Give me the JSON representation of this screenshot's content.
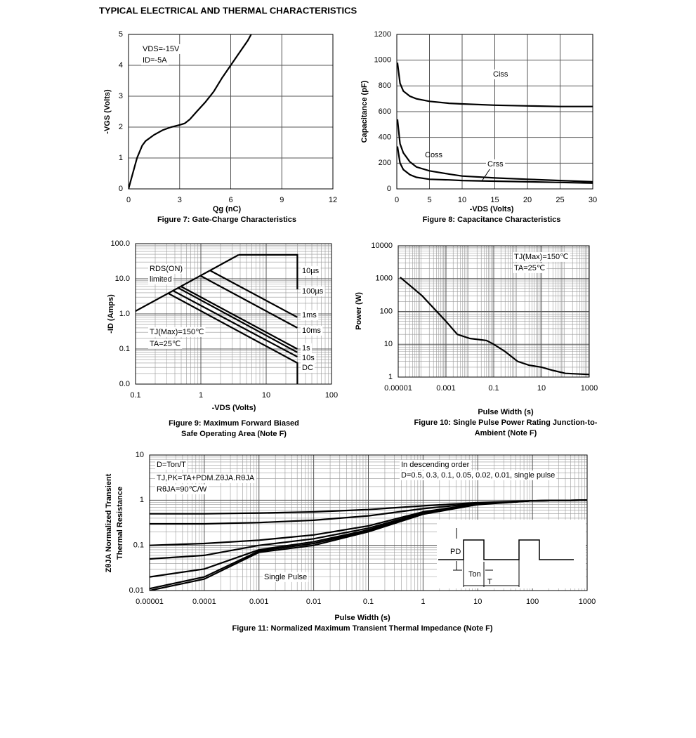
{
  "page_title": "TYPICAL ELECTRICAL AND THERMAL CHARACTERISTICS",
  "chart_data": [
    {
      "type": "line",
      "caption": [
        "Figure 7: Gate-Charge Characteristics"
      ],
      "xlabel": "Qg (nC)",
      "ylabel": [
        "-VGS (Volts)"
      ],
      "x": [
        0,
        0.2,
        0.5,
        0.8,
        1,
        1.5,
        2,
        2.5,
        3,
        3.3,
        3.6,
        4,
        4.5,
        5,
        5.5,
        6,
        6.5,
        7,
        7.2
      ],
      "series": [
        {
          "color": "#000000",
          "values": [
            0,
            0.4,
            1.0,
            1.4,
            1.55,
            1.75,
            1.9,
            2.0,
            2.07,
            2.12,
            2.25,
            2.5,
            2.8,
            3.15,
            3.6,
            4.0,
            4.4,
            4.8,
            5.0
          ]
        }
      ],
      "xlim": [
        0,
        12
      ],
      "xticks": [
        0,
        3,
        6,
        9,
        12
      ],
      "ylim": [
        0,
        5
      ],
      "yticks": [
        0,
        1,
        2,
        3,
        4,
        5
      ],
      "grid": true,
      "annotations": [
        "VDS=-15V",
        "ID=-5A"
      ]
    },
    {
      "type": "line",
      "caption": [
        "Figure 8: Capacitance Characteristics"
      ],
      "xlabel": "-VDS (Volts)",
      "ylabel": [
        "Capacitance (pF)"
      ],
      "x": [
        0.1,
        0.5,
        1,
        2,
        3,
        5,
        8,
        10,
        15,
        20,
        25,
        30
      ],
      "series": [
        {
          "name": "Ciss",
          "color": "#000000",
          "values": [
            980,
            820,
            760,
            720,
            700,
            680,
            665,
            660,
            650,
            645,
            640,
            640
          ]
        },
        {
          "name": "Coss",
          "color": "#000000",
          "values": [
            540,
            350,
            280,
            210,
            170,
            140,
            115,
            100,
            85,
            75,
            65,
            55
          ]
        },
        {
          "name": "Crss",
          "color": "#000000",
          "values": [
            330,
            200,
            150,
            110,
            90,
            75,
            70,
            65,
            60,
            55,
            50,
            45
          ]
        }
      ],
      "xlim": [
        0,
        30
      ],
      "xticks": [
        0,
        5,
        10,
        15,
        20,
        25,
        30
      ],
      "ylim": [
        0,
        1200
      ],
      "yticks": [
        0,
        200,
        400,
        600,
        800,
        1000,
        1200
      ],
      "grid": true,
      "annotations": []
    },
    {
      "type": "line",
      "caption": [
        "Figure 9: Maximum Forward Biased",
        "Safe Operating Area (Note F)"
      ],
      "xlabel": "-VDS (Volts)",
      "ylabel": [
        "-ID (Amps)"
      ],
      "xlog": true,
      "ylog": true,
      "series": [
        {
          "color": "#000000",
          "x": [
            0.1,
            3.8
          ],
          "values": [
            1.2,
            48
          ]
        },
        {
          "name": "10µs",
          "color": "#000000",
          "x": [
            3.8,
            30,
            30
          ],
          "values": [
            48,
            48,
            5
          ]
        },
        {
          "name": "100µs",
          "color": "#000000",
          "x": [
            1.4,
            30
          ],
          "values": [
            17,
            0.8
          ]
        },
        {
          "name": "1ms",
          "color": "#000000",
          "x": [
            1.0,
            30
          ],
          "values": [
            12,
            0.4
          ]
        },
        {
          "name": "10ms",
          "color": "#000000",
          "x": [
            0.5,
            30
          ],
          "values": [
            6,
            0.1
          ]
        },
        {
          "name": "1s",
          "color": "#000000",
          "x": [
            0.45,
            30
          ],
          "values": [
            5.5,
            0.08
          ]
        },
        {
          "name": "10s",
          "color": "#000000",
          "x": [
            0.38,
            30
          ],
          "values": [
            4.5,
            0.06
          ]
        },
        {
          "name": "DC",
          "color": "#000000",
          "x": [
            0.32,
            30,
            30
          ],
          "values": [
            3.8,
            0.04,
            0.01
          ]
        }
      ],
      "xlim": [
        0.1,
        100
      ],
      "xticks": [
        0.1,
        1,
        10,
        100
      ],
      "ylim": [
        0.01,
        100
      ],
      "yticks": [
        {
          "value": 0.01,
          "label": "0.0"
        },
        {
          "value": 0.1,
          "label": "0.1"
        },
        {
          "value": 1,
          "label": "1.0"
        },
        {
          "value": 10,
          "label": "10.0"
        },
        {
          "value": 100,
          "label": "100.0"
        }
      ],
      "grid": true,
      "annotations": [
        "RDS(ON)",
        "limited",
        "TJ(Max)=150℃",
        "TA=25℃"
      ]
    },
    {
      "type": "line",
      "caption": [
        "Figure 10: Single Pulse Power Rating Junction-to-",
        "Ambient (Note F)"
      ],
      "xlabel": "Pulse Width (s)",
      "ylabel": [
        "Power (W)"
      ],
      "xlog": true,
      "ylog": true,
      "x": [
        1.2e-05,
        0.0001,
        0.001,
        0.003,
        0.01,
        0.05,
        0.1,
        0.3,
        1,
        3,
        10,
        30,
        100,
        1000
      ],
      "series": [
        {
          "color": "#000000",
          "values": [
            1100,
            300,
            50,
            20,
            15,
            13,
            10,
            6,
            3,
            2.3,
            2,
            1.6,
            1.3,
            1.2
          ]
        }
      ],
      "xlim": [
        1e-05,
        1000
      ],
      "xticks": [
        {
          "value": 1e-05,
          "label": "0.00001"
        },
        0.001,
        0.1,
        10,
        1000
      ],
      "ylim": [
        1,
        10000
      ],
      "yticks": [
        1,
        10,
        100,
        1000,
        10000
      ],
      "grid": true,
      "annotations": [
        "TJ(Max)=150℃",
        "TA=25℃"
      ]
    },
    {
      "type": "line",
      "caption": [
        "Figure 11: Normalized Maximum Transient Thermal Impedance (Note F)"
      ],
      "xlabel": "Pulse Width (s)",
      "ylabel": [
        "ZθJA Normalized Transient",
        "Thermal Resistance"
      ],
      "xlog": true,
      "ylog": true,
      "x": [
        1e-05,
        0.0001,
        0.001,
        0.01,
        0.1,
        1,
        10,
        100,
        1000
      ],
      "series": [
        {
          "color": "#000000",
          "values": [
            0.5,
            0.5,
            0.52,
            0.55,
            0.62,
            0.75,
            0.88,
            0.97,
            1.0
          ]
        },
        {
          "color": "#000000",
          "values": [
            0.3,
            0.3,
            0.32,
            0.36,
            0.45,
            0.65,
            0.85,
            0.97,
            1.0
          ]
        },
        {
          "color": "#000000",
          "values": [
            0.1,
            0.11,
            0.13,
            0.17,
            0.27,
            0.55,
            0.83,
            0.97,
            1.0
          ]
        },
        {
          "color": "#000000",
          "values": [
            0.05,
            0.06,
            0.1,
            0.14,
            0.24,
            0.52,
            0.82,
            0.97,
            1.0
          ]
        },
        {
          "color": "#000000",
          "values": [
            0.02,
            0.03,
            0.08,
            0.12,
            0.22,
            0.5,
            0.81,
            0.97,
            1.0
          ]
        },
        {
          "color": "#000000",
          "values": [
            0.011,
            0.02,
            0.075,
            0.11,
            0.21,
            0.5,
            0.81,
            0.97,
            1.0
          ]
        },
        {
          "name": "Single Pulse",
          "color": "#000000",
          "values": [
            0.01,
            0.018,
            0.07,
            0.1,
            0.2,
            0.49,
            0.8,
            0.97,
            1.0
          ]
        }
      ],
      "xlim": [
        1e-05,
        1000
      ],
      "xticks": [
        {
          "value": 1e-05,
          "label": "0.00001"
        },
        0.0001,
        0.001,
        0.01,
        0.1,
        1,
        10,
        100,
        1000
      ],
      "ylim": [
        0.01,
        10
      ],
      "yticks": [
        0.01,
        0.1,
        1,
        10
      ],
      "grid": true,
      "annotations": [
        "D=Ton/T",
        "TJ,PK=TA+PDM.ZθJA.RθJA",
        "RθJA=90℃/W",
        "In descending order",
        "D=0.5, 0.3, 0.1, 0.05, 0.02, 0.01, single pulse",
        "PD",
        "Ton",
        "T"
      ]
    }
  ]
}
